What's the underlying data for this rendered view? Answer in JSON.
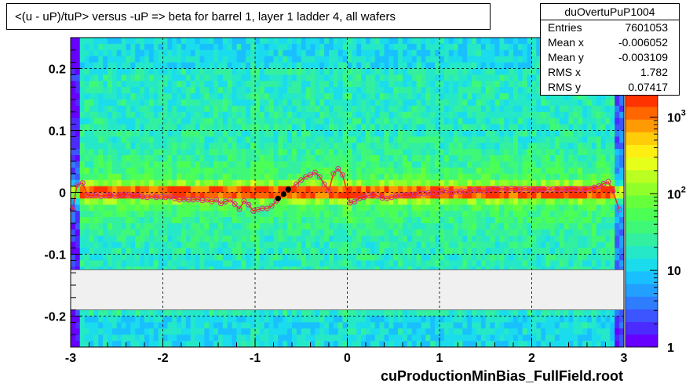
{
  "title": "<(u - uP)/tuP> versus  -uP => beta for barrel 1, layer 1 ladder 4, all wafers",
  "stats": {
    "name": "duOvertuPuP1004",
    "rows": [
      {
        "label": "Entries",
        "value": "7601053"
      },
      {
        "label": "Mean x",
        "value": "-0.006052"
      },
      {
        "label": "Mean y",
        "value": "-0.003109"
      },
      {
        "label": "RMS x",
        "value": "1.782"
      },
      {
        "label": "RMS y",
        "value": "0.07417"
      }
    ]
  },
  "footer": "cuProductionMinBias_FullField.root",
  "colors": {
    "marker_open": "#cc3399",
    "marker_filled": "#000000",
    "gap_band": "#f0f0f0"
  },
  "chart_data": {
    "type": "heatmap",
    "xlim": [
      -3,
      3
    ],
    "ylim": [
      -0.25,
      0.25
    ],
    "xticks": [
      -3,
      -2,
      -1,
      0,
      1,
      2,
      3
    ],
    "yticks": [
      -0.2,
      -0.1,
      0,
      0.1,
      0.2
    ],
    "xtick_labels": [
      "-3",
      "-2",
      "-1",
      "0",
      "1",
      "2",
      "3"
    ],
    "ytick_labels": [
      "-0.2",
      "-0.1",
      "0",
      "0.1",
      "0.2"
    ],
    "grid": true,
    "colorbar": {
      "scale": "log",
      "range": [
        1,
        2000
      ],
      "ticks": [
        1,
        10,
        100,
        1000
      ],
      "tick_labels": [
        "1",
        "10",
        "10^2",
        "10^3"
      ]
    },
    "empty_band_y": [
      -0.19,
      -0.125
    ],
    "profile_points": [
      [
        -2.98,
        -0.028
      ],
      [
        -2.93,
        0.012
      ],
      [
        -2.87,
        0.015
      ],
      [
        -2.82,
        -0.004
      ],
      [
        -2.77,
        -0.005
      ],
      [
        -2.72,
        -0.004
      ],
      [
        -2.67,
        -0.006
      ],
      [
        -2.62,
        -0.005
      ],
      [
        -2.57,
        -0.004
      ],
      [
        -2.52,
        -0.006
      ],
      [
        -2.47,
        -0.004
      ],
      [
        -2.42,
        -0.003
      ],
      [
        -2.37,
        -0.004
      ],
      [
        -2.32,
        -0.006
      ],
      [
        -2.27,
        -0.005
      ],
      [
        -2.22,
        -0.007
      ],
      [
        -2.17,
        -0.008
      ],
      [
        -2.12,
        -0.006
      ],
      [
        -2.07,
        -0.008
      ],
      [
        -2.02,
        -0.007
      ],
      [
        -1.97,
        -0.008
      ],
      [
        -1.92,
        -0.007
      ],
      [
        -1.87,
        -0.01
      ],
      [
        -1.82,
        -0.012
      ],
      [
        -1.77,
        -0.011
      ],
      [
        -1.72,
        -0.012
      ],
      [
        -1.67,
        -0.012
      ],
      [
        -1.62,
        -0.011
      ],
      [
        -1.57,
        -0.013
      ],
      [
        -1.52,
        -0.012
      ],
      [
        -1.47,
        -0.015
      ],
      [
        -1.42,
        -0.012
      ],
      [
        -1.37,
        -0.018
      ],
      [
        -1.32,
        -0.015
      ],
      [
        -1.27,
        -0.012
      ],
      [
        -1.22,
        -0.019
      ],
      [
        -1.17,
        -0.027
      ],
      [
        -1.12,
        -0.014
      ],
      [
        -1.07,
        -0.02
      ],
      [
        -1.02,
        -0.03
      ],
      [
        -0.97,
        -0.028
      ],
      [
        -0.92,
        -0.026
      ],
      [
        -0.87,
        -0.026
      ],
      [
        -0.82,
        -0.022
      ],
      [
        -0.77,
        -0.014
      ],
      [
        -0.55,
        0.013
      ],
      [
        -0.5,
        0.02
      ],
      [
        -0.45,
        0.025
      ],
      [
        -0.4,
        0.028
      ],
      [
        -0.35,
        0.032
      ],
      [
        -0.3,
        0.025
      ],
      [
        -0.25,
        0.013
      ],
      [
        -0.2,
        0.003
      ],
      [
        -0.15,
        0.03
      ],
      [
        -0.1,
        0.038
      ],
      [
        -0.05,
        0.028
      ],
      [
        0.03,
        -0.017
      ],
      [
        0.08,
        -0.015
      ],
      [
        0.13,
        -0.01
      ],
      [
        0.18,
        -0.008
      ],
      [
        0.23,
        -0.005
      ],
      [
        0.28,
        -0.003
      ],
      [
        0.33,
        -0.006
      ],
      [
        0.38,
        -0.009
      ],
      [
        0.43,
        -0.01
      ],
      [
        0.48,
        -0.008
      ],
      [
        0.53,
        -0.006
      ],
      [
        0.58,
        -0.005
      ],
      [
        0.63,
        -0.004
      ],
      [
        0.68,
        -0.004
      ],
      [
        0.73,
        -0.003
      ],
      [
        0.78,
        -0.002
      ],
      [
        0.83,
        -0.002
      ],
      [
        0.88,
        -0.001
      ],
      [
        0.93,
        0.0
      ],
      [
        0.98,
        -0.002
      ],
      [
        1.03,
        0.002
      ],
      [
        1.08,
        0.003
      ],
      [
        1.13,
        -0.002
      ],
      [
        1.18,
        0.001
      ],
      [
        1.23,
        0.002
      ],
      [
        1.28,
        0.001
      ],
      [
        1.33,
        0.003
      ],
      [
        1.38,
        0.004
      ],
      [
        1.43,
        0.003
      ],
      [
        1.48,
        0.002
      ],
      [
        1.53,
        0.004
      ],
      [
        1.58,
        0.006
      ],
      [
        1.63,
        0.005
      ],
      [
        1.68,
        0.006
      ],
      [
        1.73,
        0.005
      ],
      [
        1.78,
        0.006
      ],
      [
        1.83,
        0.005
      ],
      [
        1.88,
        0.005
      ],
      [
        1.93,
        0.006
      ],
      [
        1.98,
        0.005
      ],
      [
        2.03,
        0.005
      ],
      [
        2.08,
        0.004
      ],
      [
        2.13,
        0.005
      ],
      [
        2.18,
        0.005
      ],
      [
        2.23,
        0.005
      ],
      [
        2.28,
        0.005
      ],
      [
        2.33,
        0.005
      ],
      [
        2.38,
        0.005
      ],
      [
        2.43,
        0.006
      ],
      [
        2.48,
        0.005
      ],
      [
        2.53,
        0.005
      ],
      [
        2.58,
        0.005
      ],
      [
        2.63,
        0.006
      ],
      [
        2.68,
        0.008
      ],
      [
        2.73,
        0.01
      ],
      [
        2.78,
        0.014
      ],
      [
        2.83,
        0.017
      ],
      [
        2.88,
        0.002
      ],
      [
        2.95,
        -0.028
      ]
    ],
    "filled_points": [
      [
        -0.75,
        -0.01
      ],
      [
        -0.69,
        -0.003
      ],
      [
        -0.64,
        0.005
      ]
    ]
  }
}
